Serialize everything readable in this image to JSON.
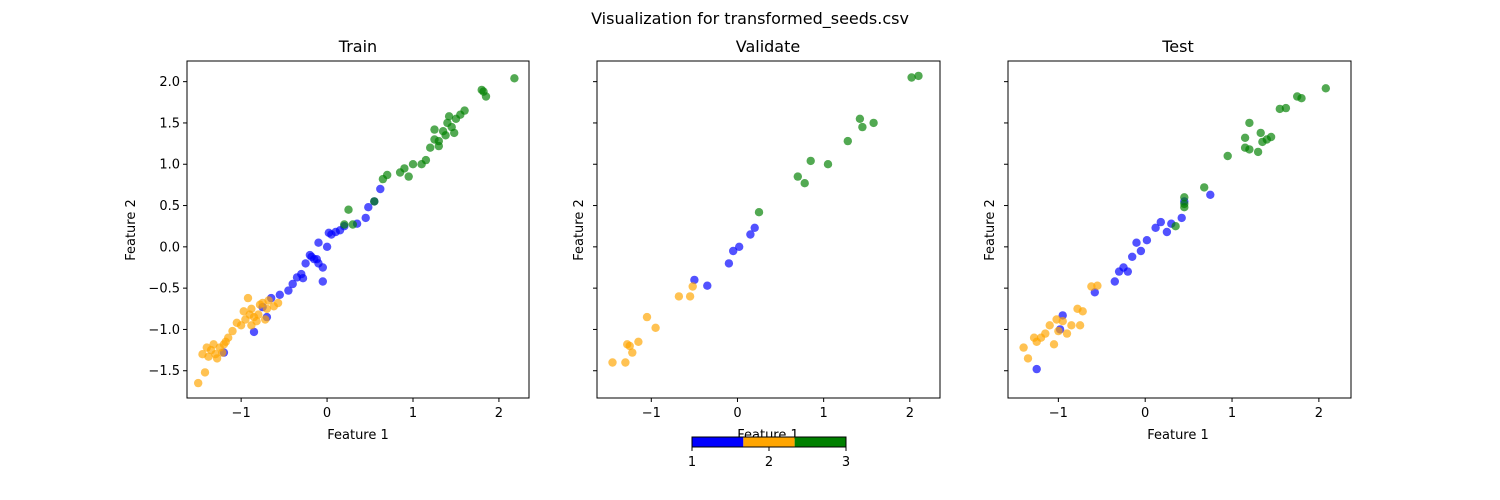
{
  "figure_title": "Visualization for transformed_seeds.csv",
  "colors": {
    "class_1": "#0000ff",
    "class_2": "#ffa500",
    "class_3": "#008000"
  },
  "colorbar": {
    "ticks": [
      "1",
      "2",
      "3"
    ]
  },
  "chart_data": [
    {
      "type": "scatter",
      "title": "Train",
      "xlabel": "Feature 1",
      "ylabel": "Feature 2",
      "xlim": [
        -1.63,
        2.35
      ],
      "ylim": [
        -1.83,
        2.25
      ],
      "xticks": [
        -1,
        0,
        1,
        2
      ],
      "yticks": [
        -1.5,
        -1.0,
        -0.5,
        0.0,
        0.5,
        1.0,
        1.5,
        2.0
      ],
      "series": [
        {
          "class": 1,
          "points": [
            [
              -1.2,
              -1.28
            ],
            [
              -0.85,
              -1.03
            ],
            [
              -0.7,
              -0.85
            ],
            [
              -0.75,
              -0.73
            ],
            [
              -0.65,
              -0.62
            ],
            [
              -0.55,
              -0.58
            ],
            [
              -0.45,
              -0.53
            ],
            [
              -0.35,
              -0.37
            ],
            [
              -0.3,
              -0.33
            ],
            [
              -0.25,
              -0.2
            ],
            [
              -0.2,
              -0.1
            ],
            [
              -0.15,
              -0.15
            ],
            [
              -0.1,
              -0.2
            ],
            [
              -0.05,
              -0.25
            ],
            [
              -0.1,
              0.05
            ],
            [
              0.0,
              0.0
            ],
            [
              0.05,
              0.15
            ],
            [
              0.1,
              0.18
            ],
            [
              0.2,
              0.25
            ],
            [
              0.35,
              0.28
            ],
            [
              0.45,
              0.35
            ],
            [
              0.55,
              0.55
            ],
            [
              0.62,
              0.7
            ],
            [
              -0.28,
              -0.38
            ],
            [
              -0.12,
              -0.15
            ],
            [
              -0.18,
              -0.12
            ],
            [
              0.02,
              0.17
            ],
            [
              -0.4,
              -0.45
            ],
            [
              -0.05,
              -0.42
            ],
            [
              0.15,
              0.2
            ],
            [
              0.48,
              0.48
            ]
          ]
        },
        {
          "class": 2,
          "points": [
            [
              -1.5,
              -1.65
            ],
            [
              -1.42,
              -1.52
            ],
            [
              -1.38,
              -1.33
            ],
            [
              -1.3,
              -1.3
            ],
            [
              -1.25,
              -1.22
            ],
            [
              -1.2,
              -1.18
            ],
            [
              -1.15,
              -1.1
            ],
            [
              -1.1,
              -1.02
            ],
            [
              -1.0,
              -0.95
            ],
            [
              -0.95,
              -0.88
            ],
            [
              -0.9,
              -0.82
            ],
            [
              -0.88,
              -0.75
            ],
            [
              -0.85,
              -0.85
            ],
            [
              -0.8,
              -0.82
            ],
            [
              -0.78,
              -0.7
            ],
            [
              -0.75,
              -0.68
            ],
            [
              -0.7,
              -0.75
            ],
            [
              -0.68,
              -0.65
            ],
            [
              -0.62,
              -0.72
            ],
            [
              -0.57,
              -0.68
            ],
            [
              -0.92,
              -0.62
            ],
            [
              -1.05,
              -0.92
            ],
            [
              -0.97,
              -0.78
            ],
            [
              -1.4,
              -1.22
            ],
            [
              -1.35,
              -1.25
            ],
            [
              -1.28,
              -1.35
            ],
            [
              -1.22,
              -1.28
            ],
            [
              -0.82,
              -0.9
            ],
            [
              -0.72,
              -0.88
            ],
            [
              -0.88,
              -0.95
            ],
            [
              -1.18,
              -1.15
            ],
            [
              -1.32,
              -1.18
            ],
            [
              -1.45,
              -1.3
            ]
          ]
        },
        {
          "class": 3,
          "points": [
            [
              0.2,
              0.27
            ],
            [
              0.25,
              0.45
            ],
            [
              0.3,
              0.27
            ],
            [
              0.55,
              0.55
            ],
            [
              0.65,
              0.82
            ],
            [
              0.7,
              0.87
            ],
            [
              0.85,
              0.9
            ],
            [
              0.9,
              0.95
            ],
            [
              0.95,
              0.85
            ],
            [
              1.0,
              1.0
            ],
            [
              1.1,
              1.0
            ],
            [
              1.15,
              1.05
            ],
            [
              1.2,
              1.2
            ],
            [
              1.25,
              1.3
            ],
            [
              1.3,
              1.28
            ],
            [
              1.35,
              1.4
            ],
            [
              1.4,
              1.5
            ],
            [
              1.45,
              1.45
            ],
            [
              1.5,
              1.55
            ],
            [
              1.55,
              1.6
            ],
            [
              1.6,
              1.65
            ],
            [
              1.82,
              1.88
            ],
            [
              1.85,
              1.82
            ],
            [
              2.18,
              2.04
            ],
            [
              1.3,
              1.22
            ],
            [
              1.38,
              1.35
            ],
            [
              1.42,
              1.58
            ],
            [
              1.48,
              1.38
            ],
            [
              1.8,
              1.9
            ],
            [
              1.25,
              1.42
            ]
          ]
        }
      ]
    },
    {
      "type": "scatter",
      "title": "Validate",
      "xlabel": "Feature 1",
      "ylabel": "Feature 2",
      "xlim": [
        -1.63,
        2.35
      ],
      "ylim": [
        -1.83,
        2.25
      ],
      "xticks": [
        -1,
        0,
        1,
        2
      ],
      "yticks": [
        -1.5,
        -1.0,
        -0.5,
        0.0,
        0.5,
        1.0,
        1.5,
        2.0
      ],
      "series": [
        {
          "class": 1,
          "points": [
            [
              -0.5,
              -0.4
            ],
            [
              -0.35,
              -0.47
            ],
            [
              -0.1,
              -0.2
            ],
            [
              -0.05,
              -0.05
            ],
            [
              0.02,
              0.0
            ],
            [
              0.15,
              0.15
            ],
            [
              0.2,
              0.23
            ]
          ]
        },
        {
          "class": 2,
          "points": [
            [
              -1.45,
              -1.4
            ],
            [
              -1.3,
              -1.4
            ],
            [
              -1.28,
              -1.18
            ],
            [
              -1.25,
              -1.2
            ],
            [
              -1.22,
              -1.28
            ],
            [
              -1.15,
              -1.15
            ],
            [
              -1.05,
              -0.85
            ],
            [
              -0.95,
              -0.98
            ],
            [
              -0.68,
              -0.6
            ],
            [
              -0.55,
              -0.6
            ],
            [
              -0.52,
              -0.48
            ]
          ]
        },
        {
          "class": 3,
          "points": [
            [
              0.25,
              0.42
            ],
            [
              0.7,
              0.85
            ],
            [
              0.78,
              0.77
            ],
            [
              0.85,
              1.04
            ],
            [
              1.05,
              1.0
            ],
            [
              1.28,
              1.28
            ],
            [
              1.42,
              1.55
            ],
            [
              1.45,
              1.45
            ],
            [
              1.58,
              1.5
            ],
            [
              2.02,
              2.05
            ],
            [
              2.1,
              2.07
            ]
          ]
        }
      ]
    },
    {
      "type": "scatter",
      "title": "Test",
      "xlabel": "Feature 1",
      "ylabel": "Feature 2",
      "xlim": [
        -1.58,
        2.37
      ],
      "ylim": [
        -1.83,
        2.25
      ],
      "xticks": [
        -1,
        0,
        1,
        2
      ],
      "yticks": [
        -1.5,
        -1.0,
        -0.5,
        0.0,
        0.5,
        1.0,
        1.5,
        2.0
      ],
      "series": [
        {
          "class": 1,
          "points": [
            [
              -1.25,
              -1.48
            ],
            [
              -0.95,
              -0.83
            ],
            [
              -0.98,
              -1.0
            ],
            [
              -0.58,
              -0.55
            ],
            [
              -0.35,
              -0.42
            ],
            [
              -0.3,
              -0.3
            ],
            [
              -0.25,
              -0.25
            ],
            [
              -0.2,
              -0.3
            ],
            [
              -0.15,
              -0.12
            ],
            [
              -0.1,
              0.05
            ],
            [
              -0.05,
              -0.05
            ],
            [
              0.02,
              0.08
            ],
            [
              0.12,
              0.23
            ],
            [
              0.18,
              0.3
            ],
            [
              0.25,
              0.18
            ],
            [
              0.3,
              0.28
            ],
            [
              0.42,
              0.35
            ],
            [
              0.45,
              0.55
            ],
            [
              0.75,
              0.63
            ]
          ]
        },
        {
          "class": 2,
          "points": [
            [
              -1.4,
              -1.22
            ],
            [
              -1.35,
              -1.35
            ],
            [
              -1.25,
              -1.15
            ],
            [
              -1.2,
              -1.1
            ],
            [
              -1.15,
              -1.05
            ],
            [
              -1.1,
              -0.95
            ],
            [
              -1.05,
              -1.18
            ],
            [
              -1.0,
              -1.02
            ],
            [
              -0.95,
              -0.9
            ],
            [
              -0.9,
              -1.05
            ],
            [
              -0.85,
              -0.95
            ],
            [
              -0.78,
              -0.75
            ],
            [
              -0.75,
              -0.95
            ],
            [
              -0.72,
              -0.78
            ],
            [
              -0.62,
              -0.48
            ],
            [
              -0.55,
              -0.47
            ],
            [
              -1.02,
              -0.88
            ],
            [
              -1.28,
              -1.1
            ]
          ]
        },
        {
          "class": 3,
          "points": [
            [
              0.35,
              0.25
            ],
            [
              0.45,
              0.6
            ],
            [
              0.45,
              0.52
            ],
            [
              0.45,
              0.48
            ],
            [
              0.68,
              0.72
            ],
            [
              0.95,
              1.1
            ],
            [
              1.15,
              1.2
            ],
            [
              1.15,
              1.32
            ],
            [
              1.2,
              1.18
            ],
            [
              1.2,
              1.5
            ],
            [
              1.3,
              1.15
            ],
            [
              1.33,
              1.38
            ],
            [
              1.35,
              1.27
            ],
            [
              1.4,
              1.3
            ],
            [
              1.45,
              1.33
            ],
            [
              1.55,
              1.67
            ],
            [
              1.62,
              1.68
            ],
            [
              1.75,
              1.82
            ],
            [
              1.8,
              1.8
            ],
            [
              2.08,
              1.92
            ]
          ]
        }
      ]
    }
  ]
}
